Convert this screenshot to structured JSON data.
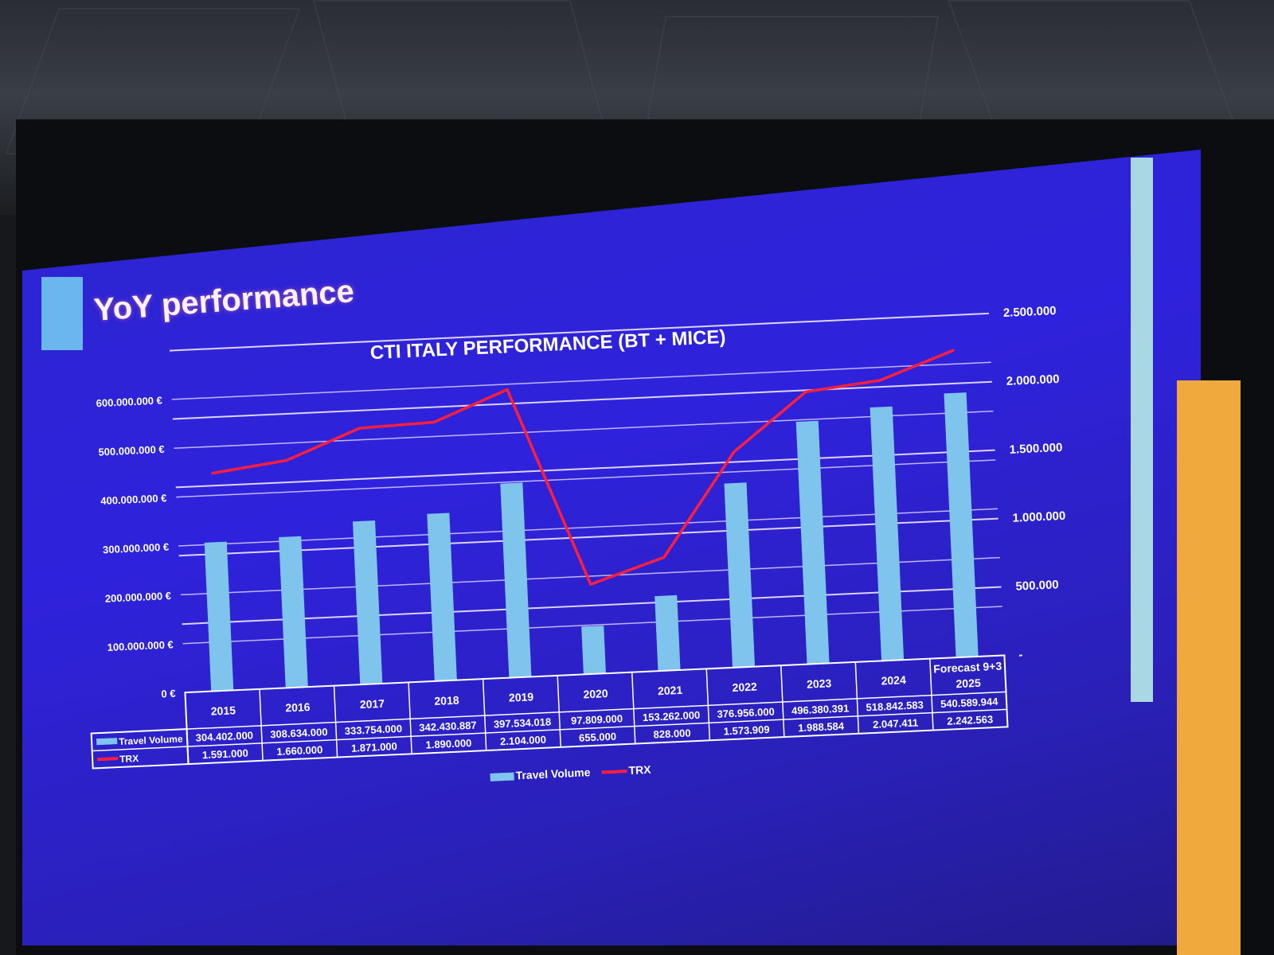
{
  "slide": {
    "title": "YoY performance"
  },
  "chart_data": {
    "type": "bar",
    "title": "CTI ITALY PERFORMANCE (BT + MICE)",
    "categories": [
      "2015",
      "2016",
      "2017",
      "2018",
      "2019",
      "2020",
      "2021",
      "2022",
      "2023",
      "2024",
      "Forecast 9+3 2025"
    ],
    "category_lines": [
      [
        "2015"
      ],
      [
        "2016"
      ],
      [
        "2017"
      ],
      [
        "2018"
      ],
      [
        "2019"
      ],
      [
        "2020"
      ],
      [
        "2021"
      ],
      [
        "2022"
      ],
      [
        "2023"
      ],
      [
        "2024"
      ],
      [
        "Forecast 9+3",
        "2025"
      ]
    ],
    "series": [
      {
        "name": "Travel Volume",
        "type": "bar",
        "axis": "left",
        "color": "#7fc4ec",
        "values": [
          304402000,
          308634000,
          333754000,
          342430887,
          397534018,
          97809000,
          153262000,
          376956000,
          496380391,
          518842583,
          540589944
        ],
        "labels": [
          "304.402.000",
          "308.634.000",
          "333.754.000",
          "342.430.887",
          "397.534.018",
          "97.809.000",
          "153.262.000",
          "376.956.000",
          "496.380.391",
          "518.842.583",
          "540.589.944"
        ]
      },
      {
        "name": "TRX",
        "type": "line",
        "axis": "right",
        "color": "#ff1f3d",
        "values": [
          1591000,
          1660000,
          1871000,
          1890000,
          2104000,
          655000,
          828000,
          1573909,
          1988584,
          2047411,
          2242563
        ],
        "labels": [
          "1.591.000",
          "1.660.000",
          "1.871.000",
          "1.890.000",
          "2.104.000",
          "655.000",
          "828.000",
          "1.573.909",
          "1.988.584",
          "2.047.411",
          "2.242.563"
        ]
      }
    ],
    "left_axis": {
      "ylim": [
        0,
        600000000
      ],
      "ticks": [
        0,
        100000000,
        200000000,
        300000000,
        400000000,
        500000000,
        600000000
      ],
      "tick_labels": [
        "0 €",
        "100.000.000 €",
        "200.000.000 €",
        "300.000.000 €",
        "400.000.000 €",
        "500.000.000 €",
        "600.000.000 €"
      ]
    },
    "right_axis": {
      "ylim": [
        0,
        2500000
      ],
      "ticks": [
        0,
        500000,
        1000000,
        1500000,
        2000000,
        2500000
      ],
      "tick_labels": [
        "-",
        "500.000",
        "1.000.000",
        "1.500.000",
        "2.000.000",
        "2.500.000"
      ]
    },
    "grid": true,
    "legend": {
      "position": "bottom",
      "entries": [
        "Travel Volume",
        "TRX"
      ]
    },
    "data_table": true
  }
}
